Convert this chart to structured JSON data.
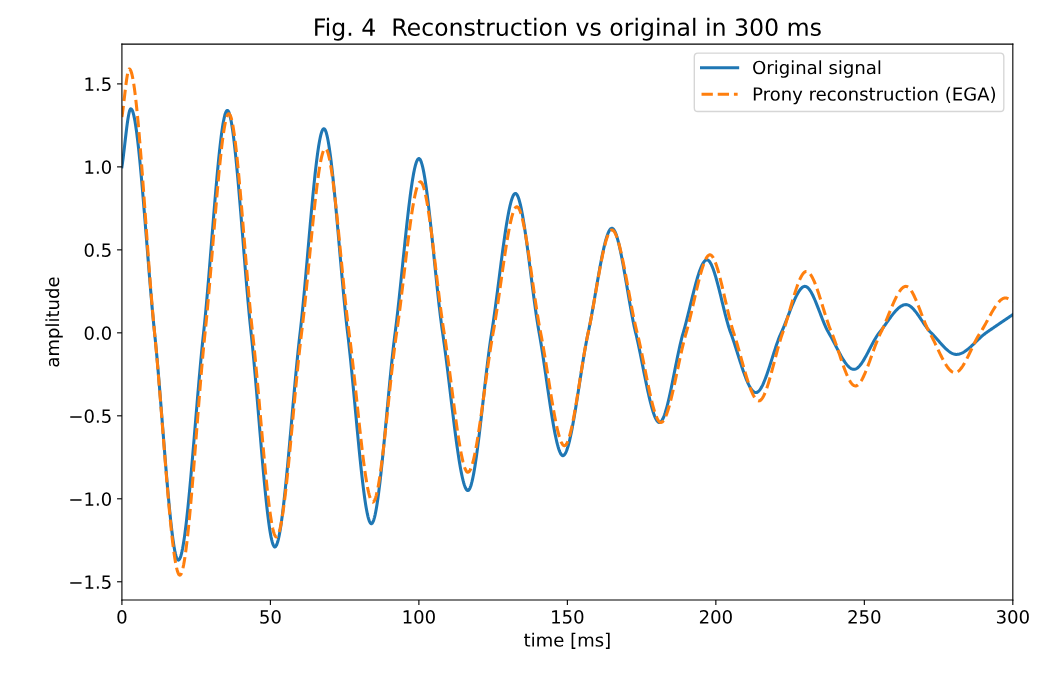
{
  "chart_data": {
    "type": "line",
    "title": "Fig. 4  Reconstruction vs original in 300 ms",
    "xlabel": "time [ms]",
    "ylabel": "amplitude",
    "xlim": [
      0,
      300
    ],
    "xticks": [
      0,
      50,
      100,
      150,
      200,
      250,
      300
    ],
    "ylim": [
      -1.61,
      1.74
    ],
    "yticks": [
      {
        "value": -1.5,
        "label": "−1.5"
      },
      {
        "value": -1.0,
        "label": "−1.0"
      },
      {
        "value": -0.5,
        "label": "−0.5"
      },
      {
        "value": 0,
        "label": "0.0"
      },
      {
        "value": 0.5,
        "label": "0.5"
      },
      {
        "value": 1.0,
        "label": "1.0"
      },
      {
        "value": 1.5,
        "label": "1.5"
      }
    ],
    "grid": false,
    "legend": "top right",
    "marker": "none",
    "series": [
      {
        "name": "Original signal",
        "color": "#1f77b4",
        "line_style": "solid",
        "x": [
          0,
          3,
          11,
          19,
          27.5,
          35.5,
          43.5,
          51.5,
          60,
          68,
          76,
          84,
          92,
          100,
          108,
          116.5,
          124.5,
          132.5,
          140.5,
          148.5,
          157,
          165,
          173,
          181,
          189,
          197,
          205,
          213.5,
          222,
          230,
          238,
          246.5,
          255,
          264,
          272.5,
          281,
          291,
          300
        ],
        "values": [
          1.0,
          1.35,
          0,
          -1.37,
          0,
          1.34,
          0,
          -1.29,
          0,
          1.23,
          0,
          -1.15,
          0,
          1.05,
          0,
          -0.95,
          0,
          0.84,
          0,
          -0.74,
          0,
          0.63,
          0,
          -0.54,
          0,
          0.44,
          0,
          -0.36,
          0,
          0.28,
          0,
          -0.22,
          0,
          0.17,
          0,
          -0.13,
          0,
          0.11
        ]
      },
      {
        "name": "Prony reconstruction (EGA)",
        "color": "#ff7f0e",
        "line_style": "dashed",
        "x": [
          0,
          2.5,
          11,
          19.5,
          28,
          36,
          44,
          52,
          60.5,
          68.5,
          76.5,
          84.5,
          92.5,
          100.5,
          108.5,
          116.5,
          125,
          133,
          141,
          149,
          157,
          165,
          173.5,
          181.5,
          190,
          198,
          206,
          214.5,
          222.5,
          230.5,
          239,
          247,
          255.5,
          264,
          272,
          280.5,
          289,
          297.5,
          300
        ],
        "values": [
          1.3,
          1.59,
          0,
          -1.46,
          0,
          1.32,
          0,
          -1.23,
          0,
          1.11,
          0,
          -1.02,
          0,
          0.91,
          0,
          -0.84,
          0,
          0.76,
          0,
          -0.68,
          0,
          0.62,
          0,
          -0.54,
          0,
          0.47,
          0,
          -0.41,
          0,
          0.37,
          0,
          -0.32,
          0,
          0.28,
          0,
          -0.24,
          0,
          0.21,
          0.19
        ]
      }
    ]
  }
}
